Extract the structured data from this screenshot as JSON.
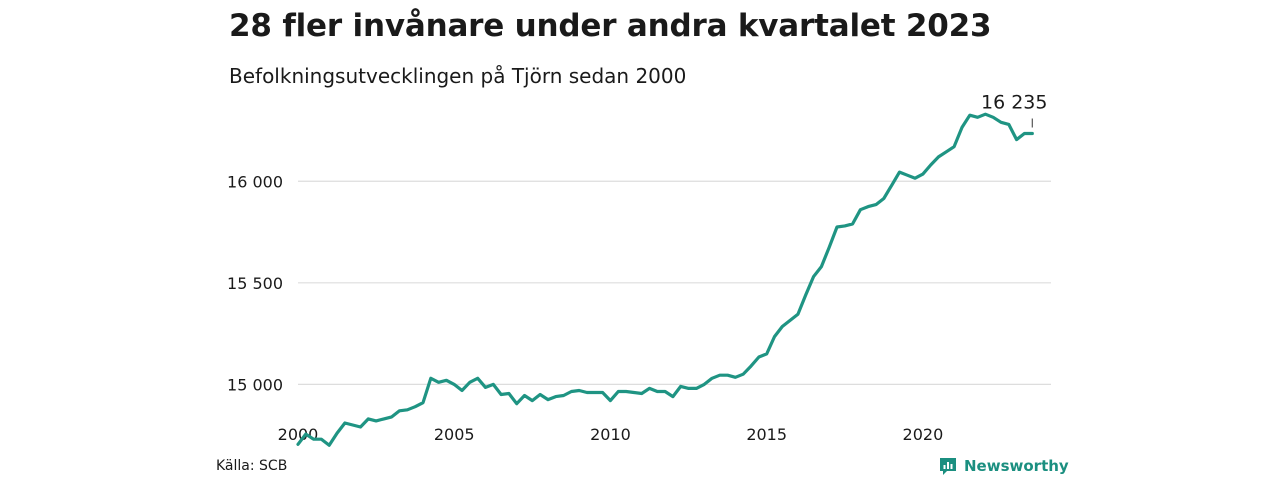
{
  "header": {
    "title": "28 fler invånare under andra kvartalet 2023",
    "subtitle": "Befolkningsutvecklingen på Tjörn sedan 2000"
  },
  "footer": {
    "source": "Källa: SCB",
    "brand": "Newsworthy",
    "brand_icon": "bar-chart-speech-bubble-icon"
  },
  "colors": {
    "line": "#1f9483",
    "brand": "#1b8f80",
    "grid": "#dddddd",
    "text": "#1a1a1a"
  },
  "chart_data": {
    "type": "line",
    "title": "28 fler invånare under andra kvartalet 2023",
    "subtitle": "Befolkningsutvecklingen på Tjörn sedan 2000",
    "xlabel": "",
    "ylabel": "",
    "xlim": [
      2000,
      2023.5
    ],
    "ylim": [
      14800,
      16400
    ],
    "x_ticks": [
      2000,
      2005,
      2010,
      2015,
      2020
    ],
    "x_tick_labels": [
      "2000",
      "2005",
      "2010",
      "2015",
      "2020"
    ],
    "y_ticks": [
      15000,
      15500,
      16000
    ],
    "y_tick_labels": [
      "15 000",
      "15 500",
      "16 000"
    ],
    "grid": "horizontal",
    "legend": "none",
    "annotations": [
      {
        "x": 2023.5,
        "y": 16235,
        "text": "16 235"
      }
    ],
    "series": [
      {
        "x": [
          2000.0,
          2000.25,
          2000.5,
          2000.75,
          2001.0,
          2001.25,
          2001.5,
          2001.75,
          2002.0,
          2002.25,
          2002.5,
          2002.75,
          2003.0,
          2003.25,
          2003.5,
          2003.75,
          2004.0,
          2004.25,
          2004.5,
          2004.75,
          2005.0,
          2005.25,
          2005.5,
          2005.75,
          2006.0,
          2006.25,
          2006.5,
          2006.75,
          2007.0,
          2007.25,
          2007.5,
          2007.75,
          2008.0,
          2008.25,
          2008.5,
          2008.75,
          2009.0,
          2009.25,
          2009.5,
          2009.75,
          2010.0,
          2010.25,
          2010.5,
          2010.75,
          2011.0,
          2011.25,
          2011.5,
          2011.75,
          2012.0,
          2012.25,
          2012.5,
          2012.75,
          2013.0,
          2013.25,
          2013.5,
          2013.75,
          2014.0,
          2014.25,
          2014.5,
          2014.75,
          2015.0,
          2015.25,
          2015.5,
          2015.75,
          2016.0,
          2016.25,
          2016.5,
          2016.75,
          2017.0,
          2017.25,
          2017.5,
          2017.75,
          2018.0,
          2018.25,
          2018.5,
          2018.75,
          2019.0,
          2019.25,
          2019.5,
          2019.75,
          2020.0,
          2020.25,
          2020.5,
          2020.75,
          2021.0,
          2021.25,
          2021.5,
          2021.75,
          2022.0,
          2022.25,
          2022.5,
          2022.75,
          2023.0,
          2023.25,
          2023.5
        ],
        "values": [
          14705,
          14755,
          14730,
          14730,
          14700,
          14760,
          14810,
          14800,
          14790,
          14830,
          14820,
          14830,
          14840,
          14870,
          14875,
          14890,
          14910,
          15030,
          15010,
          15020,
          15000,
          14970,
          15010,
          15030,
          14985,
          15000,
          14950,
          14955,
          14905,
          14945,
          14920,
          14950,
          14925,
          14940,
          14945,
          14965,
          14970,
          14960,
          14960,
          14960,
          14920,
          14965,
          14965,
          14960,
          14955,
          14980,
          14965,
          14965,
          14940,
          14990,
          14980,
          14980,
          15000,
          15030,
          15045,
          15045,
          15035,
          15050,
          15090,
          15135,
          15150,
          15235,
          15285,
          15315,
          15345,
          15440,
          15530,
          15580,
          15675,
          15775,
          15780,
          15790,
          15860,
          15875,
          15885,
          15915,
          15980,
          16045,
          16030,
          16015,
          16035,
          16080,
          16120,
          16145,
          16170,
          16265,
          16325,
          16315,
          16330,
          16315,
          16290,
          16280,
          16205,
          16235,
          16235
        ]
      }
    ]
  }
}
